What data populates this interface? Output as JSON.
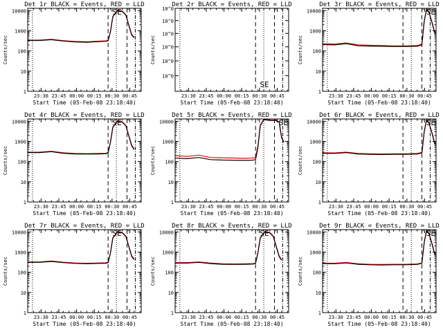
{
  "figure": {
    "xlabel": "Start Time (05-Feb-08 23:18:40)",
    "ylabel": "Counts/sec",
    "time_ticks": [
      "23:30",
      "23:45",
      "00:00",
      "00:15",
      "00:30",
      "00:45"
    ],
    "time_ticks_minutes": [
      11.33,
      26.33,
      41.33,
      56.33,
      71.33,
      86.33
    ],
    "x_range_minutes": [
      0,
      96
    ],
    "dotted_markers_minutes": [
      4,
      75
    ],
    "dashed_markers_minutes": [
      68,
      84
    ],
    "dotdash_markers_minutes": [
      91
    ],
    "se_label": "SE",
    "colors": {
      "events": "#000000",
      "lld": "#ff0000",
      "axes": "#000000"
    }
  },
  "chart_data": [
    {
      "type": "line",
      "title": "Det 1r BLACK = Events, RED = LLD",
      "yscale": "log",
      "ylim": [
        1,
        13000
      ],
      "ytick_labels": [
        "1",
        "10",
        "100",
        "1000",
        "10000"
      ],
      "ytick_values": [
        1,
        10,
        100,
        1000,
        10000
      ],
      "se_at_minutes": 72,
      "series": [
        {
          "name": "Events",
          "x": [
            0,
            10,
            20,
            30,
            40,
            50,
            60,
            66,
            68,
            70,
            72,
            76,
            80,
            83,
            86,
            88,
            90
          ],
          "values": [
            330,
            330,
            360,
            310,
            280,
            270,
            290,
            300,
            320,
            900,
            5000,
            10000,
            9000,
            6000,
            1500,
            600,
            450
          ]
        },
        {
          "name": "LLD",
          "x": [
            0,
            10,
            20,
            30,
            40,
            50,
            60,
            66,
            68,
            70,
            72,
            76,
            80,
            83,
            86,
            88,
            90
          ],
          "values": [
            345,
            345,
            375,
            325,
            295,
            285,
            305,
            315,
            340,
            950,
            5200,
            10500,
            9500,
            6300,
            1600,
            650,
            480
          ]
        }
      ]
    },
    {
      "type": "line",
      "title": "Det 2r BLACK = Events, RED = LLD",
      "yscale": "log",
      "ylim": [
        0.9,
        1.2
      ],
      "ytick_labels": [
        "10^0",
        "10^0",
        "10^0",
        "10^0",
        "10^0",
        "10^0"
      ],
      "ytick_values": [
        0.95,
        1.0,
        1.05,
        1.1,
        1.15,
        1.2
      ],
      "se_at_minutes": 72,
      "series": []
    },
    {
      "type": "line",
      "title": "Det 3r BLACK = Events, RED = LLD",
      "yscale": "log",
      "ylim": [
        1,
        13000
      ],
      "ytick_labels": [
        "1",
        "10",
        "100",
        "1000",
        "10000"
      ],
      "ytick_values": [
        1,
        10,
        100,
        1000,
        10000
      ],
      "se_at_minutes": 88,
      "series": [
        {
          "name": "Events",
          "x": [
            0,
            10,
            20,
            30,
            40,
            50,
            60,
            70,
            80,
            84,
            86,
            88,
            90,
            93,
            95
          ],
          "values": [
            210,
            200,
            230,
            180,
            175,
            170,
            165,
            165,
            170,
            200,
            3000,
            12000,
            8000,
            2000,
            700
          ]
        },
        {
          "name": "LLD",
          "x": [
            0,
            10,
            20,
            30,
            40,
            50,
            60,
            70,
            80,
            84,
            86,
            88,
            90,
            93,
            95
          ],
          "values": [
            230,
            220,
            250,
            200,
            190,
            185,
            180,
            180,
            185,
            220,
            3200,
            12500,
            8500,
            2200,
            760
          ]
        }
      ]
    },
    {
      "type": "line",
      "title": "Det 4r BLACK = Events, RED = LLD",
      "yscale": "log",
      "ylim": [
        1,
        13000
      ],
      "ytick_labels": [
        "1",
        "10",
        "100",
        "1000",
        "10000"
      ],
      "ytick_values": [
        1,
        10,
        100,
        1000,
        10000
      ],
      "se_at_minutes": 72,
      "series": [
        {
          "name": "Events",
          "x": [
            0,
            10,
            20,
            30,
            40,
            50,
            60,
            66,
            68,
            70,
            72,
            76,
            80,
            83,
            86,
            88,
            90
          ],
          "values": [
            280,
            280,
            310,
            260,
            240,
            235,
            240,
            245,
            270,
            900,
            5000,
            10000,
            9000,
            6000,
            1500,
            600,
            400
          ]
        },
        {
          "name": "LLD",
          "x": [
            0,
            10,
            20,
            30,
            40,
            50,
            60,
            66,
            68,
            70,
            72,
            76,
            80,
            83,
            86,
            88,
            90
          ],
          "values": [
            295,
            295,
            325,
            275,
            255,
            250,
            255,
            260,
            285,
            950,
            5200,
            10500,
            9500,
            6300,
            1600,
            650,
            430
          ]
        }
      ]
    },
    {
      "type": "line",
      "title": "Det 5r BLACK = Events, RED = LLD",
      "yscale": "log",
      "ylim": [
        1,
        13000
      ],
      "ytick_labels": [
        "1",
        "10",
        "100",
        "1000",
        "10000"
      ],
      "ytick_values": [
        1,
        10,
        100,
        1000,
        10000
      ],
      "se_at_minutes": 88,
      "series": [
        {
          "name": "Events",
          "x": [
            0,
            10,
            20,
            30,
            40,
            50,
            60,
            65,
            68,
            70,
            72,
            75,
            80,
            85,
            88,
            90,
            92
          ],
          "values": [
            150,
            140,
            160,
            125,
            120,
            118,
            115,
            118,
            125,
            500,
            6000,
            12000,
            11000,
            11000,
            9000,
            1500,
            900
          ]
        },
        {
          "name": "LLD",
          "x": [
            0,
            10,
            20,
            30,
            40,
            50,
            60,
            65,
            68,
            70,
            72,
            75,
            80,
            85,
            88,
            90,
            92
          ],
          "values": [
            200,
            180,
            210,
            160,
            155,
            150,
            145,
            150,
            160,
            600,
            6500,
            12500,
            11500,
            11500,
            9500,
            1600,
            950
          ]
        }
      ]
    },
    {
      "type": "line",
      "title": "Det 6r BLACK = Events, RED = LLD",
      "yscale": "log",
      "ylim": [
        1,
        13000
      ],
      "ytick_labels": [
        "1",
        "10",
        "100",
        "1000",
        "10000"
      ],
      "ytick_values": [
        1,
        10,
        100,
        1000,
        10000
      ],
      "se_at_minutes": 88,
      "series": [
        {
          "name": "Events",
          "x": [
            0,
            10,
            20,
            30,
            40,
            50,
            60,
            70,
            80,
            84,
            86,
            88,
            90,
            93,
            95
          ],
          "values": [
            260,
            255,
            280,
            240,
            230,
            225,
            230,
            230,
            240,
            270,
            3000,
            12000,
            8000,
            2000,
            700
          ]
        },
        {
          "name": "LLD",
          "x": [
            0,
            10,
            20,
            30,
            40,
            50,
            60,
            70,
            80,
            84,
            86,
            88,
            90,
            93,
            95
          ],
          "values": [
            275,
            270,
            295,
            255,
            245,
            240,
            245,
            245,
            255,
            285,
            3200,
            12500,
            8500,
            2200,
            760
          ]
        }
      ]
    },
    {
      "type": "line",
      "title": "Det 7r BLACK = Events, RED = LLD",
      "yscale": "log",
      "ylim": [
        1,
        13000
      ],
      "ytick_labels": [
        "1",
        "10",
        "100",
        "1000",
        "10000"
      ],
      "ytick_values": [
        1,
        10,
        100,
        1000,
        10000
      ],
      "se_at_minutes": 72,
      "series": [
        {
          "name": "Events",
          "x": [
            0,
            10,
            20,
            30,
            40,
            50,
            60,
            66,
            68,
            70,
            72,
            76,
            80,
            83,
            86,
            88,
            90
          ],
          "values": [
            310,
            310,
            345,
            300,
            275,
            265,
            275,
            280,
            300,
            900,
            5000,
            10000,
            9000,
            6000,
            1500,
            600,
            430
          ]
        },
        {
          "name": "LLD",
          "x": [
            0,
            10,
            20,
            30,
            40,
            50,
            60,
            66,
            68,
            70,
            72,
            76,
            80,
            83,
            86,
            88,
            90
          ],
          "values": [
            325,
            325,
            360,
            315,
            290,
            280,
            290,
            295,
            315,
            950,
            5200,
            10500,
            9500,
            6300,
            1600,
            650,
            460
          ]
        }
      ]
    },
    {
      "type": "line",
      "title": "Det 8r BLACK = Events, RED = LLD",
      "yscale": "log",
      "ylim": [
        1,
        13000
      ],
      "ytick_labels": [
        "1",
        "10",
        "100",
        "1000",
        "10000"
      ],
      "ytick_values": [
        1,
        10,
        100,
        1000,
        10000
      ],
      "se_at_minutes": 72,
      "series": [
        {
          "name": "Events",
          "x": [
            0,
            10,
            20,
            30,
            40,
            50,
            60,
            66,
            68,
            70,
            72,
            76,
            80,
            83,
            86,
            88,
            90
          ],
          "values": [
            285,
            285,
            310,
            270,
            250,
            245,
            250,
            255,
            275,
            900,
            5000,
            10000,
            9000,
            6000,
            1500,
            600,
            400
          ]
        },
        {
          "name": "LLD",
          "x": [
            0,
            10,
            20,
            30,
            40,
            50,
            60,
            66,
            68,
            70,
            72,
            76,
            80,
            83,
            86,
            88,
            90
          ],
          "values": [
            300,
            300,
            325,
            285,
            265,
            260,
            265,
            270,
            290,
            950,
            5200,
            10500,
            9500,
            6300,
            1600,
            650,
            430
          ]
        }
      ]
    },
    {
      "type": "line",
      "title": "Det 9r BLACK = Events, RED = LLD",
      "yscale": "log",
      "ylim": [
        1,
        13000
      ],
      "ytick_labels": [
        "1",
        "10",
        "100",
        "1000",
        "10000"
      ],
      "ytick_values": [
        1,
        10,
        100,
        1000,
        10000
      ],
      "se_at_minutes": 88,
      "series": [
        {
          "name": "Events",
          "x": [
            0,
            10,
            20,
            30,
            40,
            50,
            60,
            70,
            80,
            84,
            86,
            88,
            90,
            93,
            95
          ],
          "values": [
            270,
            265,
            290,
            250,
            235,
            230,
            235,
            235,
            245,
            275,
            3000,
            12000,
            8000,
            2000,
            700
          ]
        },
        {
          "name": "LLD",
          "x": [
            0,
            10,
            20,
            30,
            40,
            50,
            60,
            70,
            80,
            84,
            86,
            88,
            90,
            93,
            95
          ],
          "values": [
            285,
            280,
            305,
            265,
            250,
            245,
            250,
            250,
            260,
            290,
            3200,
            12500,
            8500,
            2200,
            760
          ]
        }
      ]
    }
  ]
}
